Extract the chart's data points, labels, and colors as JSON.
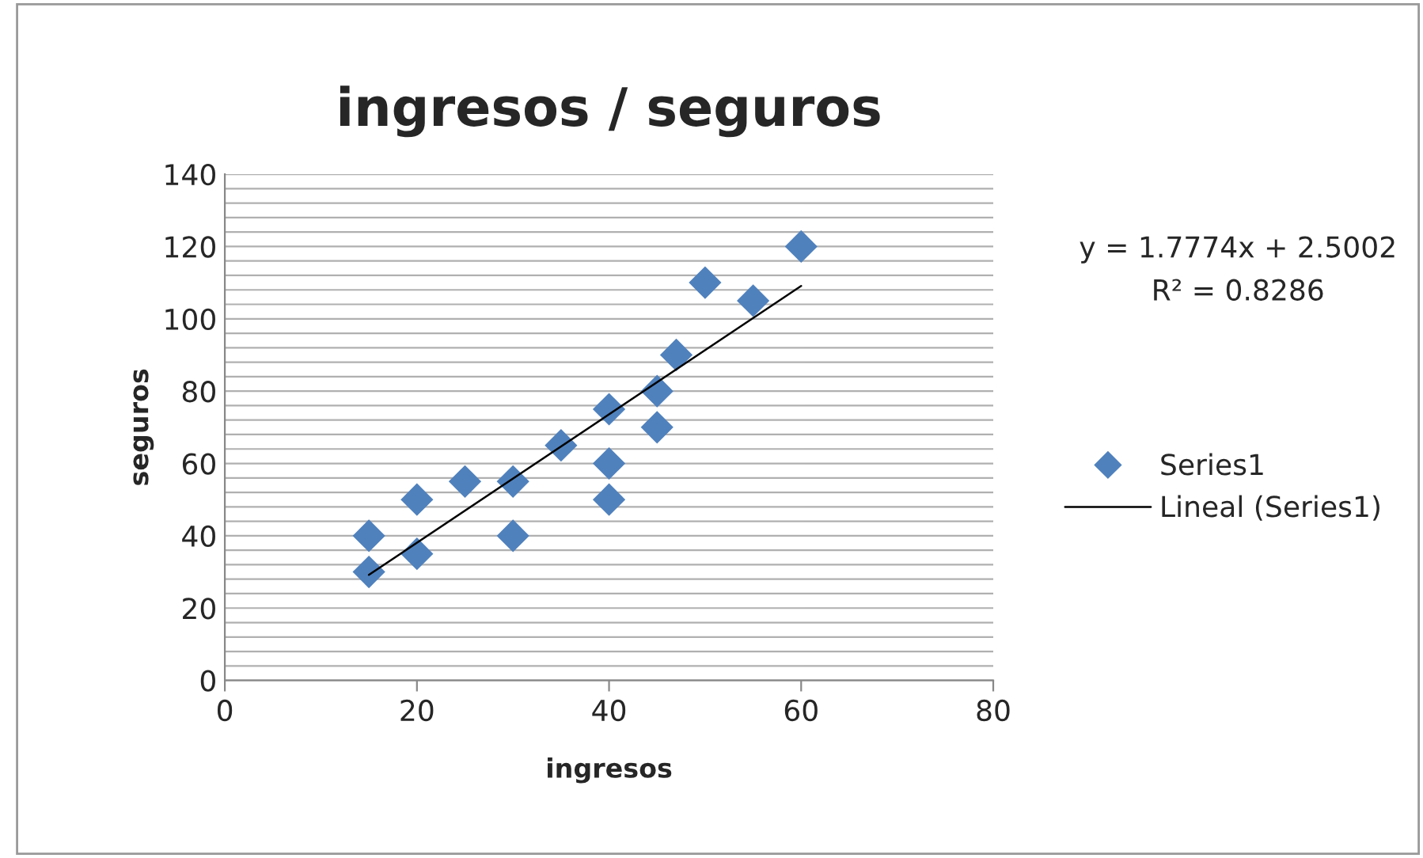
{
  "chart_data": {
    "type": "scatter",
    "title": "ingresos / seguros",
    "xlabel": "ingresos",
    "ylabel": "seguros",
    "annotations": [
      "y = 1.7774x + 2.5002",
      "R² = 0.8286"
    ],
    "xlim": [
      0,
      80
    ],
    "xticks": [
      0,
      20,
      40,
      60,
      80
    ],
    "ylim": [
      0,
      140
    ],
    "yticks": [
      0,
      {
        "value": 4,
        "label": null
      },
      {
        "value": 8,
        "label": null
      },
      {
        "value": 12,
        "label": null
      },
      {
        "value": 16,
        "label": null
      },
      20,
      {
        "value": 24,
        "label": null
      },
      {
        "value": 28,
        "label": null
      },
      {
        "value": 32,
        "label": null
      },
      {
        "value": 36,
        "label": null
      },
      40,
      {
        "value": 44,
        "label": null
      },
      {
        "value": 48,
        "label": null
      },
      {
        "value": 52,
        "label": null
      },
      {
        "value": 56,
        "label": null
      },
      60,
      {
        "value": 64,
        "label": null
      },
      {
        "value": 68,
        "label": null
      },
      {
        "value": 72,
        "label": null
      },
      {
        "value": 76,
        "label": null
      },
      80,
      {
        "value": 84,
        "label": null
      },
      {
        "value": 88,
        "label": null
      },
      {
        "value": 92,
        "label": null
      },
      {
        "value": 96,
        "label": null
      },
      100,
      {
        "value": 104,
        "label": null
      },
      {
        "value": 108,
        "label": null
      },
      {
        "value": 112,
        "label": null
      },
      {
        "value": 116,
        "label": null
      },
      120,
      {
        "value": 124,
        "label": null
      },
      {
        "value": 128,
        "label": null
      },
      {
        "value": 132,
        "label": null
      },
      {
        "value": 136,
        "label": null
      },
      140
    ],
    "grid": "y",
    "legend": "right",
    "series": [
      {
        "name": "Series1",
        "marker": "diamond",
        "color": "#4f81bd",
        "x": [
          15,
          15,
          20,
          20,
          25,
          30,
          30,
          35,
          40,
          40,
          40,
          45,
          45,
          47,
          50,
          55,
          60
        ],
        "values": [
          30,
          40,
          35,
          50,
          55,
          55,
          40,
          65,
          75,
          60,
          50,
          80,
          70,
          90,
          110,
          105,
          120
        ]
      },
      {
        "name": "Lineal (Series1)",
        "type": "line",
        "marker": "none",
        "color": "#000000",
        "x": [
          15,
          60
        ],
        "values": [
          29.2,
          109.1
        ]
      }
    ]
  }
}
